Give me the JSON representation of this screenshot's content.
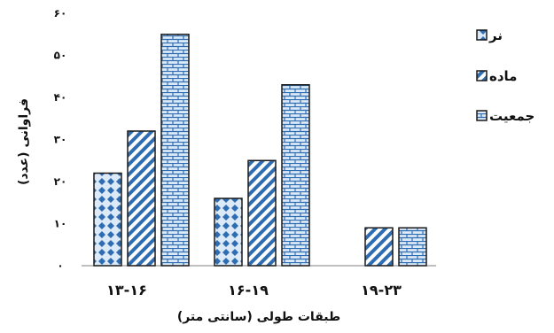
{
  "chart_data": {
    "type": "bar",
    "title": "",
    "xlabel": "طبقات طولی (سانتی متر)",
    "ylabel": "فراوانی (عدد)",
    "ylim": [
      0,
      60
    ],
    "yticks": [
      "۰",
      "۱۰",
      "۲۰",
      "۳۰",
      "۴۰",
      "۵۰",
      "۶۰"
    ],
    "categories": [
      "۱۳-۱۶",
      "۱۶-۱۹",
      "۱۹-۲۳"
    ],
    "series": [
      {
        "name": "نر",
        "values": [
          22,
          16,
          0
        ],
        "pattern": "dots"
      },
      {
        "name": "ماده",
        "values": [
          32,
          25,
          9
        ],
        "pattern": "diagonal"
      },
      {
        "name": "جمعیت",
        "values": [
          55,
          43,
          9
        ],
        "pattern": "brick"
      }
    ],
    "grid": false,
    "legend": "right",
    "colors": {
      "accent": "#2f6db3",
      "fill_light": "#dce9f7",
      "axis": "#7f7f7f",
      "text": "#111111"
    }
  }
}
